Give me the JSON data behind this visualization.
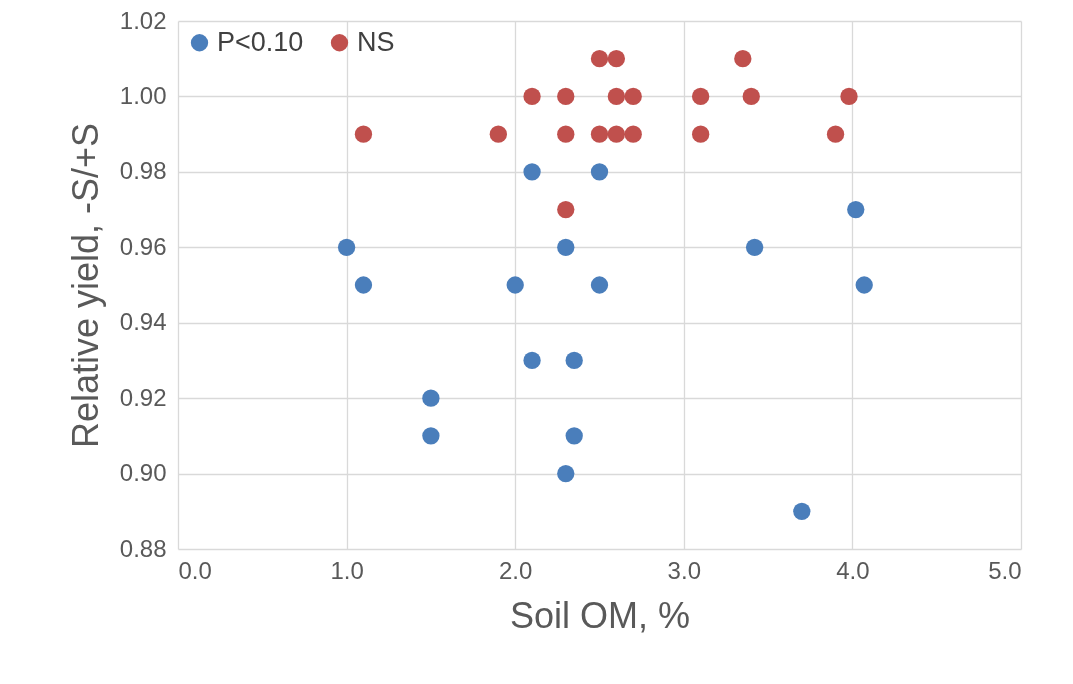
{
  "chart_data": {
    "type": "scatter",
    "xlabel": "Soil OM, %",
    "ylabel": "Relative yield, -S/+S",
    "series": [
      {
        "name": "P<0.10",
        "color": "#4a7ebb",
        "x": [
          1.0,
          1.1,
          1.5,
          1.5,
          2.0,
          2.1,
          2.1,
          2.3,
          2.3,
          2.35,
          2.35,
          2.5,
          2.5,
          3.42,
          3.7,
          4.02,
          4.07
        ],
        "values": [
          0.96,
          0.95,
          0.92,
          0.91,
          0.95,
          0.98,
          0.93,
          0.96,
          0.9,
          0.93,
          0.91,
          0.98,
          0.95,
          0.96,
          0.89,
          0.97,
          0.95
        ]
      },
      {
        "name": "NS",
        "color": "#c0504d",
        "x": [
          1.1,
          1.9,
          2.1,
          2.3,
          2.3,
          2.3,
          2.5,
          2.5,
          2.6,
          2.6,
          2.6,
          2.7,
          2.7,
          3.1,
          3.1,
          3.35,
          3.4,
          3.9,
          3.98
        ],
        "values": [
          0.99,
          0.99,
          1.0,
          1.0,
          0.99,
          0.97,
          1.01,
          0.99,
          1.01,
          1.0,
          0.99,
          1.0,
          0.99,
          1.0,
          0.99,
          1.01,
          1.0,
          0.99,
          1.0
        ]
      }
    ],
    "xlim": [
      0,
      5
    ],
    "xticks": [
      {
        "value": 0,
        "label": "0.0"
      },
      {
        "value": 1,
        "label": "1.0"
      },
      {
        "value": 2,
        "label": "2.0"
      },
      {
        "value": 3,
        "label": "3.0"
      },
      {
        "value": 4,
        "label": "4.0"
      },
      {
        "value": 5,
        "label": "5.0"
      }
    ],
    "ylim": [
      0.88,
      1.02
    ],
    "yticks": [
      0.88,
      {
        "value": 0.9,
        "label": "0.90"
      },
      0.92,
      0.94,
      0.96,
      0.98,
      {
        "value": 1.0,
        "label": "1.00"
      },
      1.02
    ],
    "grid": true,
    "legend": "top left",
    "marker": "circle"
  }
}
